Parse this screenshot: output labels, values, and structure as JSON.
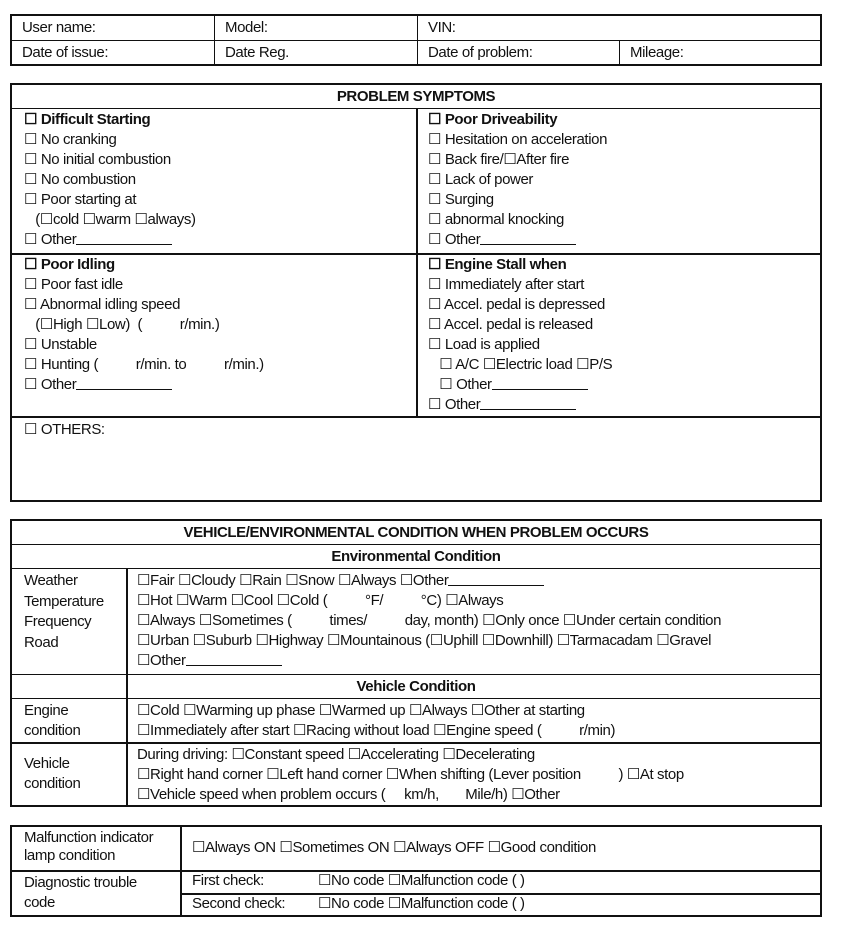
{
  "header": {
    "user_name": "User name:",
    "model": "Model:",
    "vin": "VIN:",
    "date_issue": "Date of issue:",
    "date_reg": "Date Reg.",
    "date_problem": "Date of problem:",
    "mileage": "Mileage:"
  },
  "symptoms": {
    "title": "PROBLEM SYMPTOMS",
    "difficult_starting": [
      "☐ Difficult Starting",
      "☐ No cranking",
      "☐ No initial combustion",
      "☐ No combustion",
      "☐ Poor starting at",
      "   (☐cold ☐warm ☐always)",
      "☐ Other"
    ],
    "poor_driveability": [
      "☐ Poor Driveability",
      "☐ Hesitation on acceleration",
      "☐ Back fire/☐After fire",
      "☐ Lack of power",
      "☐ Surging",
      "☐ abnormal knocking",
      "☐ Other"
    ],
    "poor_idling": [
      "☐ Poor Idling",
      "☐ Poor fast idle",
      "☐ Abnormal idling speed",
      "   (☐High ☐Low)  (          r/min.)",
      "☐ Unstable",
      "☐ Hunting (          r/min. to          r/min.)",
      "☐ Other"
    ],
    "engine_stall": [
      "☐ Engine Stall when",
      "☐ Immediately after start",
      "☐ Accel. pedal is depressed",
      "☐ Accel. pedal is released",
      "☐ Load is applied",
      "   ☐ A/C ☐Electric load ☐P/S",
      "   ☐ Other",
      "☐ Other"
    ],
    "others": "☐ OTHERS:"
  },
  "conditions": {
    "title": "VEHICLE/ENVIRONMENTAL CONDITION WHEN PROBLEM OCCURS",
    "env_title": "Environmental Condition",
    "env_labels": [
      "Weather",
      "Temperature",
      "Frequency",
      "Road"
    ],
    "env_lines": [
      "☐Fair ☐Cloudy ☐Rain ☐Snow ☐Always ☐Other",
      "☐Hot ☐Warm ☐Cool ☐Cold (          °F/          °C) ☐Always",
      "☐Always ☐Sometimes (          times/          day, month) ☐Only once ☐Under certain condition",
      "☐Urban ☐Suburb ☐Highway ☐Mountainous (☐Uphill ☐Downhill) ☐Tarmacadam ☐Gravel",
      "☐Other"
    ],
    "veh_title": "Vehicle Condition",
    "engine_label": [
      "Engine",
      "condition"
    ],
    "engine_lines": [
      "☐Cold ☐Warming up phase ☐Warmed up ☐Always ☐Other at starting",
      "☐Immediately after start ☐Racing without load ☐Engine speed (          r/min)"
    ],
    "vehicle_label": [
      "Vehicle",
      "condition"
    ],
    "vehicle_lines": [
      "During driving: ☐Constant speed ☐Accelerating ☐Decelerating",
      "☐Right hand corner ☐Left hand corner ☐When shifting (Lever position          ) ☐At stop",
      "☐Vehicle speed when problem occurs (     km/h,       Mile/h) ☐Other"
    ]
  },
  "diagnostic": {
    "mil_label": [
      "Malfunction indicator",
      "lamp condition"
    ],
    "mil_options": "☐Always ON ☐Sometimes ON ☐Always OFF ☐Good condition",
    "dtc_label": [
      "Diagnostic trouble",
      "code"
    ],
    "first_check": "First check:",
    "second_check": "Second check:",
    "check_options": "☐No code ☐Malfunction code (                         )"
  }
}
